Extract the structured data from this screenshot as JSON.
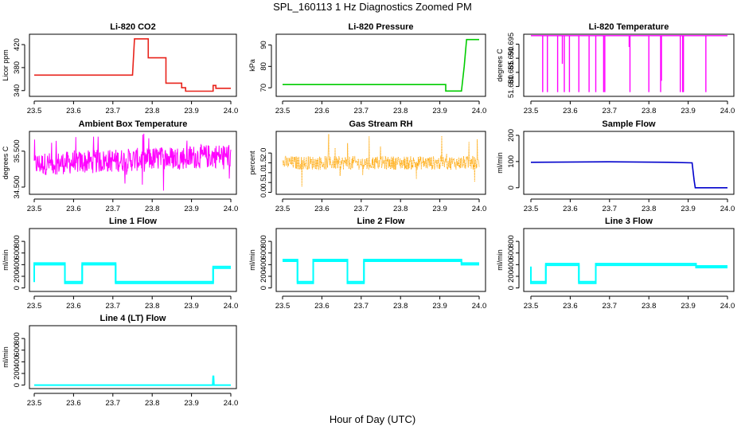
{
  "figure": {
    "title": "SPL_160113  1 Hz Diagnostics Zoomed PM",
    "xlabel": "Hour of Day (UTC)"
  },
  "chart_data": [
    {
      "type": "line",
      "title": "Li-820 CO2",
      "ylabel": "Licor ppm",
      "color": "#e8231b",
      "xlim": [
        23.5,
        24.0
      ],
      "ylim": [
        330,
        438
      ],
      "xticks": [
        "23.5",
        "23.6",
        "23.7",
        "23.8",
        "23.9",
        "24.0"
      ],
      "yticks": [
        340,
        380,
        420
      ],
      "x": [
        23.5,
        23.75,
        23.755,
        23.79,
        23.79,
        23.835,
        23.835,
        23.875,
        23.875,
        23.885,
        23.885,
        23.955,
        23.955,
        23.962,
        23.962,
        24.0
      ],
      "y": [
        367,
        367,
        430,
        430,
        397,
        397,
        353,
        353,
        345,
        345,
        339,
        339,
        349,
        349,
        344,
        344
      ]
    },
    {
      "type": "line",
      "title": "Li-820 Pressure",
      "ylabel": "kPa",
      "color": "#00cc00",
      "xlim": [
        23.5,
        24.0
      ],
      "ylim": [
        66,
        95
      ],
      "xticks": [
        "23.5",
        "23.6",
        "23.7",
        "23.8",
        "23.9",
        "24.0"
      ],
      "yticks": [
        70,
        80,
        90
      ],
      "x": [
        23.5,
        23.915,
        23.915,
        23.955,
        23.962,
        23.968,
        24.0
      ],
      "y": [
        71.5,
        71.5,
        68.5,
        68.5,
        80,
        92.5,
        92.5
      ]
    },
    {
      "type": "line",
      "title": "Li-820 Temperature",
      "ylabel": "degrees C",
      "color": "#ff00ff",
      "xlim": [
        23.5,
        24.0
      ],
      "ylim": [
        51.6765,
        51.6985
      ],
      "xticks": [
        "23.5",
        "23.6",
        "23.7",
        "23.8",
        "23.9",
        "24.0"
      ],
      "yticks": [
        51.68,
        51.685,
        51.69,
        51.695
      ],
      "baseline": 51.698,
      "dips": [
        [
          23.53,
          51.678
        ],
        [
          23.542,
          51.678
        ],
        [
          23.568,
          51.678
        ],
        [
          23.58,
          51.688
        ],
        [
          23.585,
          51.678
        ],
        [
          23.598,
          51.678
        ],
        [
          23.622,
          51.678
        ],
        [
          23.648,
          51.678
        ],
        [
          23.665,
          51.678
        ],
        [
          23.685,
          51.678
        ],
        [
          23.688,
          51.678
        ],
        [
          23.75,
          51.694
        ],
        [
          23.752,
          51.678
        ],
        [
          23.8,
          51.678
        ],
        [
          23.83,
          51.678
        ],
        [
          23.832,
          51.682
        ],
        [
          23.88,
          51.678
        ],
        [
          23.886,
          51.678
        ],
        [
          23.888,
          51.678
        ],
        [
          23.945,
          51.678
        ]
      ]
    },
    {
      "type": "line",
      "title": "Ambient Box Temperature",
      "ylabel": "degrees C",
      "color": "#ff00ff",
      "xlim": [
        23.5,
        24.0
      ],
      "ylim": [
        34.3,
        36.05
      ],
      "xticks": [
        "23.5",
        "23.6",
        "23.7",
        "23.8",
        "23.9",
        "24.0"
      ],
      "yticks": [
        34.5,
        35.5
      ],
      "noise": {
        "low": 34.82,
        "high": 35.45,
        "low_end": 35.05,
        "high_end": 35.72,
        "spike_max": 36.0,
        "spike_min": 34.4
      }
    },
    {
      "type": "line",
      "title": "Gas Stream RH",
      "ylabel": "percent",
      "color": "#ffa500",
      "xlim": [
        23.5,
        24.0
      ],
      "ylim": [
        -0.1,
        3.1
      ],
      "xticks": [
        "23.5",
        "23.6",
        "23.7",
        "23.8",
        "23.9",
        "24.0"
      ],
      "yticks": [
        0.0,
        0.5,
        1.0,
        1.5,
        2.0
      ],
      "noise": {
        "low": 1.15,
        "high": 1.85,
        "spike_max": 3.0,
        "spike_min": 0.0
      }
    },
    {
      "type": "line",
      "title": "Sample Flow",
      "ylabel": "ml/min",
      "color": "#0000cc",
      "xlim": [
        23.5,
        24.0
      ],
      "ylim": [
        -25,
        215
      ],
      "xticks": [
        "23.5",
        "23.6",
        "23.7",
        "23.8",
        "23.9",
        "24.0"
      ],
      "yticks": [
        0,
        100,
        200
      ],
      "x": [
        23.5,
        23.7,
        23.85,
        23.91,
        23.915,
        23.918,
        24.0
      ],
      "y": [
        97,
        99,
        97,
        95,
        30,
        0,
        0
      ]
    },
    {
      "type": "line",
      "title": "Line 1 Flow",
      "ylabel": "ml/min",
      "color": "#00ffff",
      "xlim": [
        23.5,
        24.0
      ],
      "ylim": [
        -60,
        1020
      ],
      "xticks": [
        "23.5",
        "23.6",
        "23.7",
        "23.8",
        "23.9",
        "24.0"
      ],
      "yticks": [
        0,
        200,
        400,
        600,
        800
      ],
      "x": [
        23.5,
        23.5,
        23.578,
        23.578,
        23.622,
        23.622,
        23.707,
        23.707,
        23.955,
        23.955,
        24.0
      ],
      "y": [
        100,
        400,
        400,
        80,
        80,
        400,
        400,
        80,
        80,
        340,
        340
      ]
    },
    {
      "type": "line",
      "title": "Line 2 Flow",
      "ylabel": "ml/min",
      "color": "#00ffff",
      "xlim": [
        23.5,
        24.0
      ],
      "ylim": [
        -60,
        1020
      ],
      "xticks": [
        "23.5",
        "23.6",
        "23.7",
        "23.8",
        "23.9",
        "24.0"
      ],
      "yticks": [
        0,
        200,
        400,
        600,
        800
      ],
      "x": [
        23.5,
        23.538,
        23.538,
        23.578,
        23.578,
        23.665,
        23.665,
        23.707,
        23.707,
        23.955,
        23.955,
        24.0
      ],
      "y": [
        460,
        460,
        80,
        80,
        460,
        460,
        80,
        80,
        460,
        460,
        400,
        400
      ]
    },
    {
      "type": "line",
      "title": "Line 3 Flow",
      "ylabel": "ml/min",
      "color": "#00ffff",
      "xlim": [
        23.5,
        24.0
      ],
      "ylim": [
        -60,
        1020
      ],
      "xticks": [
        "23.5",
        "23.6",
        "23.7",
        "23.8",
        "23.9",
        "24.0"
      ],
      "yticks": [
        0,
        200,
        400,
        600,
        800
      ],
      "x": [
        23.5,
        23.5,
        23.538,
        23.538,
        23.622,
        23.622,
        23.665,
        23.665,
        23.92,
        23.92,
        24.0
      ],
      "y": [
        340,
        80,
        80,
        390,
        390,
        80,
        80,
        390,
        390,
        350,
        350
      ]
    },
    {
      "type": "line",
      "title": "Line 4 (LT) Flow",
      "ylabel": "ml/min",
      "color": "#00ffff",
      "xlim": [
        23.5,
        24.0
      ],
      "ylim": [
        -60,
        1020
      ],
      "xticks": [
        "23.5",
        "23.6",
        "23.7",
        "23.8",
        "23.9",
        "24.0"
      ],
      "yticks": [
        0,
        200,
        400,
        600,
        800
      ],
      "x": [
        23.5,
        23.954,
        23.955,
        23.956,
        23.957,
        24.0
      ],
      "y": [
        0,
        0,
        150,
        150,
        0,
        0
      ]
    }
  ]
}
